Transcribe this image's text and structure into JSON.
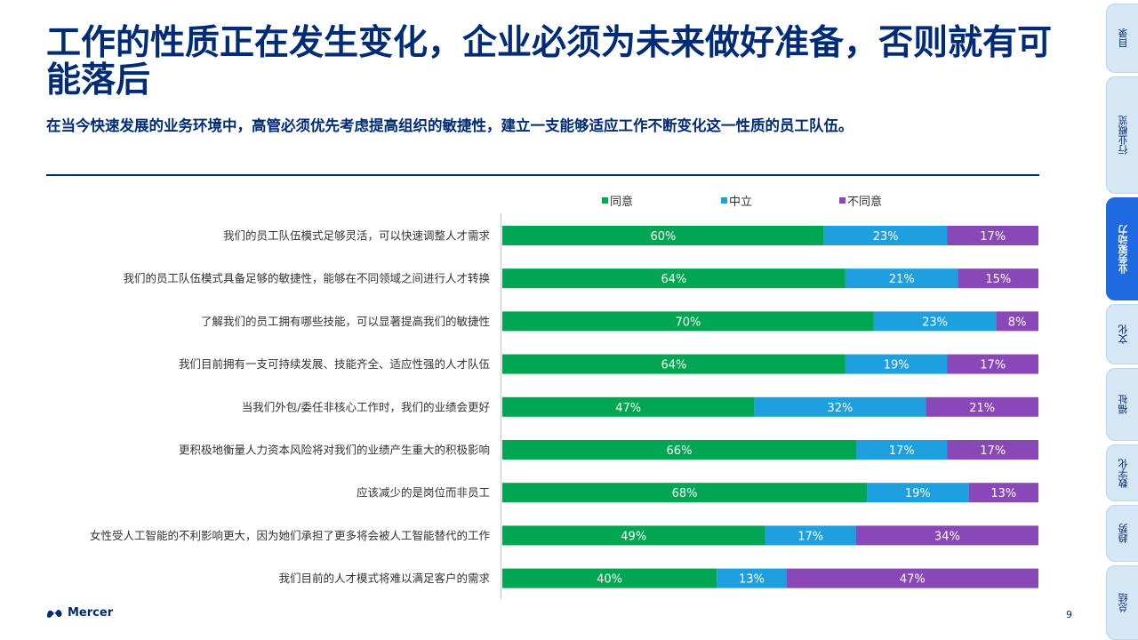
{
  "title": "工作的性质正在发生变化，企业必须为未来做好准备，否则就有可能落后",
  "subtitle": "在当今快速发展的业务环境中，高管必须优先考虑提高组织的敏捷性，建立一支能够适应工作不断变化这一性质的员工队伍。",
  "brand": "Mercer",
  "page_number": "9",
  "side_tabs": [
    {
      "label": "目录",
      "active": false
    },
    {
      "label": "行业概览",
      "active": false
    },
    {
      "label": "业务驱动力",
      "active": true
    },
    {
      "label": "文化",
      "active": false
    },
    {
      "label": "福祉",
      "active": false
    },
    {
      "label": "数字化",
      "active": false
    },
    {
      "label": "趋势",
      "active": false
    },
    {
      "label": "总结",
      "active": false
    }
  ],
  "colors": {
    "agree": "#00a651",
    "neutral": "#1e9fe0",
    "disagree": "#8a47b8",
    "brand": "#002c77",
    "active_tab": "#1f6ae0"
  },
  "chart_data": {
    "type": "bar",
    "orientation": "horizontal-stacked-100",
    "legend_position": "top",
    "categories": [
      "我们的员工队伍模式足够灵活，可以快速调整人才需求",
      "我们的员工队伍模式具备足够的敏捷性，能够在不同领域之间进行人才转换",
      "了解我们的员工拥有哪些技能，可以显著提高我们的敏捷性",
      "我们目前拥有一支可持续发展、技能齐全、适应性强的人才队伍",
      "当我们外包/委任非核心工作时，我们的业绩会更好",
      "更积极地衡量人力资本风险将对我们的业绩产生重大的积极影响",
      "应该减少的是岗位而非员工",
      "女性受人工智能的不利影响更大，因为她们承担了更多将会被人工智能替代的工作",
      "我们目前的人才模式将难以满足客户的需求"
    ],
    "series": [
      {
        "name": "同意",
        "values": [
          60,
          64,
          70,
          64,
          47,
          66,
          68,
          49,
          40
        ]
      },
      {
        "name": "中立",
        "values": [
          23,
          21,
          23,
          19,
          32,
          17,
          19,
          17,
          13
        ]
      },
      {
        "name": "不同意",
        "values": [
          17,
          15,
          8,
          17,
          21,
          17,
          13,
          34,
          47
        ]
      }
    ],
    "value_suffix": "%"
  }
}
